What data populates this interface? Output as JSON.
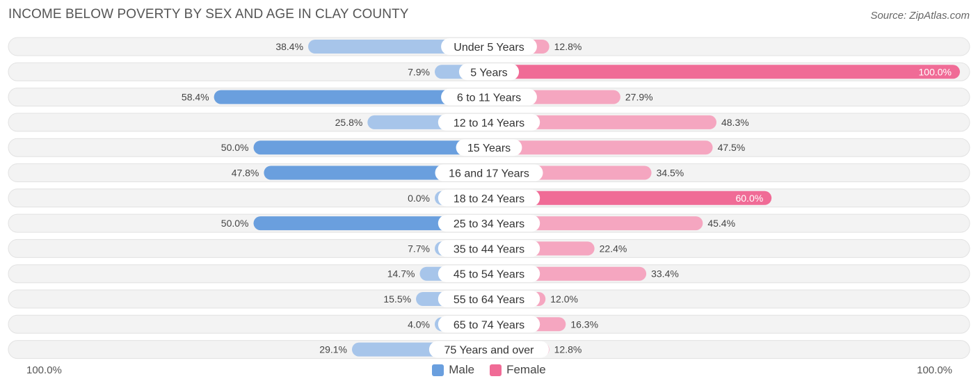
{
  "title": "INCOME BELOW POVERTY BY SEX AND AGE IN CLAY COUNTY",
  "source": "Source: ZipAtlas.com",
  "axis_left_label": "100.0%",
  "axis_right_label": "100.0%",
  "legend": {
    "male": "Male",
    "female": "Female"
  },
  "colors": {
    "male": "#6a9fde",
    "male_light": "#a7c5ea",
    "female": "#f06b96",
    "female_light": "#f5a6c0",
    "track": "#f1f1f1"
  },
  "chart_data": {
    "type": "bar",
    "orientation": "horizontal-diverging",
    "title": "INCOME BELOW POVERTY BY SEX AND AGE IN CLAY COUNTY",
    "xlim": [
      0,
      100
    ],
    "categories": [
      "Under 5 Years",
      "5 Years",
      "6 to 11 Years",
      "12 to 14 Years",
      "15 Years",
      "16 and 17 Years",
      "18 to 24 Years",
      "25 to 34 Years",
      "35 to 44 Years",
      "45 to 54 Years",
      "55 to 64 Years",
      "65 to 74 Years",
      "75 Years and over"
    ],
    "series": [
      {
        "name": "Male",
        "values": [
          38.4,
          7.9,
          58.4,
          25.8,
          50.0,
          47.8,
          0.0,
          50.0,
          7.7,
          14.7,
          15.5,
          4.0,
          29.1
        ],
        "labels": [
          "38.4%",
          "7.9%",
          "58.4%",
          "25.8%",
          "50.0%",
          "47.8%",
          "0.0%",
          "50.0%",
          "7.7%",
          "14.7%",
          "15.5%",
          "4.0%",
          "29.1%"
        ]
      },
      {
        "name": "Female",
        "values": [
          12.8,
          100.0,
          27.9,
          48.3,
          47.5,
          34.5,
          60.0,
          45.4,
          22.4,
          33.4,
          12.0,
          16.3,
          12.8
        ],
        "labels": [
          "12.8%",
          "100.0%",
          "27.9%",
          "48.3%",
          "47.5%",
          "34.5%",
          "60.0%",
          "45.4%",
          "22.4%",
          "33.4%",
          "12.0%",
          "16.3%",
          "12.8%"
        ]
      }
    ],
    "legend_position": "bottom-center"
  }
}
